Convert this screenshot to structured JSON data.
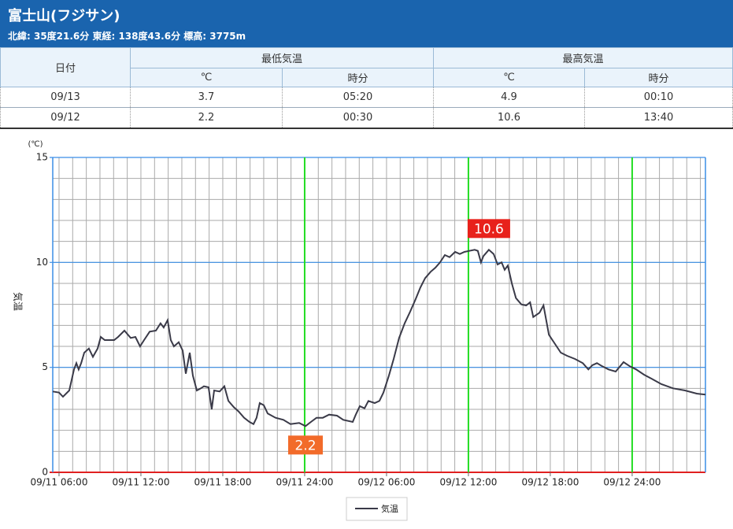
{
  "header": {
    "title": "富士山(フジサン)",
    "subtitle": "北緯: 35度21.6分 東経: 138度43.6分 標高: 3775m"
  },
  "table": {
    "header": [
      "日付",
      "最低気温",
      "最高気温"
    ],
    "subheader": [
      "℃",
      "時分",
      "℃",
      "時分"
    ],
    "rows": [
      [
        "09/13",
        "3.7",
        "05:20",
        "4.9",
        "00:10"
      ],
      [
        "09/12",
        "2.2",
        "00:30",
        "10.6",
        "13:40"
      ]
    ]
  },
  "chart_data": {
    "type": "line",
    "y_unit": "(℃)",
    "ylabel": "気温",
    "xlim": [
      5.54,
      53.37
    ],
    "ylim": [
      0,
      15
    ],
    "yticks": [
      0,
      5,
      10,
      15
    ],
    "xticks": [
      {
        "value": 6,
        "label": "09/11 06:00"
      },
      {
        "value": 12,
        "label": "09/11 12:00"
      },
      {
        "value": 18,
        "label": "09/11 18:00"
      },
      {
        "value": 24,
        "label": "09/11 24:00"
      },
      {
        "value": 30,
        "label": "09/12 06:00"
      },
      {
        "value": 36,
        "label": "09/12 12:00"
      },
      {
        "value": 42,
        "label": "09/12 18:00"
      },
      {
        "value": 48,
        "label": "09/12 24:00"
      }
    ],
    "grid": true,
    "minor_grid": true,
    "highlight_x": [
      24,
      36,
      48
    ],
    "highlight_color": "#22dd22",
    "x": [
      5.54,
      6.0,
      6.29,
      6.75,
      7.1,
      7.27,
      7.44,
      7.62,
      7.85,
      8.19,
      8.48,
      8.83,
      9.06,
      9.35,
      10.04,
      10.33,
      10.79,
      11.25,
      11.6,
      11.94,
      12.23,
      12.64,
      13.1,
      13.44,
      13.67,
      13.96,
      14.19,
      14.42,
      14.77,
      15.06,
      15.29,
      15.58,
      15.81,
      16.1,
      16.39,
      16.62,
      16.96,
      17.19,
      17.37,
      17.77,
      18.12,
      18.41,
      18.81,
      19.16,
      19.56,
      19.96,
      20.25,
      20.48,
      20.71,
      21.0,
      21.29,
      21.87,
      22.44,
      22.96,
      23.6,
      24.06,
      24.46,
      24.87,
      25.33,
      25.79,
      26.37,
      26.83,
      27.52,
      27.75,
      28.04,
      28.39,
      28.67,
      29.13,
      29.48,
      29.77,
      30.17,
      30.52,
      30.92,
      31.33,
      31.73,
      32.13,
      32.48,
      32.83,
      33.23,
      33.58,
      33.92,
      34.27,
      34.62,
      35.02,
      35.37,
      35.71,
      36.06,
      36.46,
      36.69,
      36.92,
      37.1,
      37.5,
      37.85,
      38.14,
      38.43,
      38.66,
      38.89,
      39.18,
      39.48,
      39.88,
      40.23,
      40.52,
      40.75,
      41.21,
      41.5,
      41.9,
      42.31,
      42.77,
      43.23,
      43.81,
      44.38,
      44.79,
      45.08,
      45.42,
      45.81,
      46.27,
      46.79,
      47.37,
      47.83,
      48.29,
      48.87,
      49.44,
      50.14,
      51.0,
      51.87,
      52.73,
      53.37
    ],
    "series": [
      {
        "name": "気温",
        "color": "#3a3a48",
        "values": [
          3.85,
          3.8,
          3.6,
          3.9,
          4.9,
          5.2,
          4.9,
          5.2,
          5.7,
          5.9,
          5.5,
          5.9,
          6.45,
          6.3,
          6.3,
          6.45,
          6.75,
          6.4,
          6.45,
          6.0,
          6.3,
          6.7,
          6.75,
          7.1,
          6.9,
          7.25,
          6.3,
          6.0,
          6.2,
          5.8,
          4.7,
          5.7,
          4.6,
          3.9,
          4.0,
          4.1,
          4.05,
          3.0,
          3.9,
          3.85,
          4.1,
          3.4,
          3.1,
          2.9,
          2.6,
          2.4,
          2.3,
          2.6,
          3.3,
          3.2,
          2.8,
          2.6,
          2.5,
          2.3,
          2.35,
          2.2,
          2.4,
          2.6,
          2.6,
          2.75,
          2.7,
          2.5,
          2.4,
          2.75,
          3.15,
          3.05,
          3.4,
          3.3,
          3.4,
          3.8,
          4.6,
          5.4,
          6.4,
          7.1,
          7.65,
          8.25,
          8.8,
          9.25,
          9.55,
          9.75,
          10.0,
          10.35,
          10.25,
          10.5,
          10.4,
          10.5,
          10.55,
          10.6,
          10.55,
          10.0,
          10.3,
          10.6,
          10.4,
          9.9,
          10.0,
          9.65,
          9.85,
          9.0,
          8.3,
          8.0,
          7.95,
          8.1,
          7.4,
          7.6,
          7.95,
          6.55,
          6.15,
          5.7,
          5.55,
          5.4,
          5.2,
          4.9,
          5.1,
          5.2,
          5.05,
          4.9,
          4.8,
          5.25,
          5.05,
          4.9,
          4.65,
          4.45,
          4.2,
          4.0,
          3.9,
          3.75,
          3.7
        ]
      }
    ],
    "annotations": [
      {
        "label": "2.2",
        "x": 24.06,
        "y": 2.2,
        "color": "#f26b2a"
      },
      {
        "label": "10.6",
        "x": 37.5,
        "y": 10.6,
        "color": "#e8211b"
      }
    ]
  }
}
